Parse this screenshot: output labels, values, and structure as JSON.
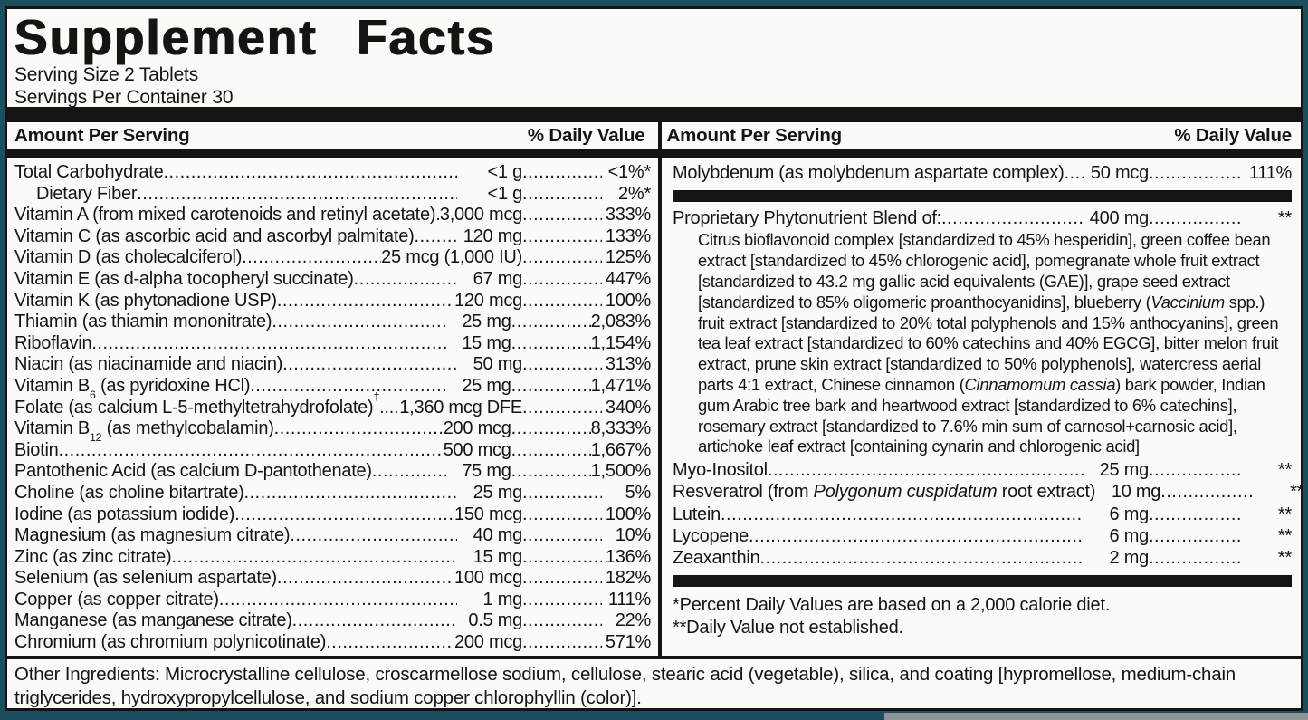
{
  "title": "Supplement Facts",
  "serving": {
    "size": "Serving Size 2 Tablets",
    "per_container": "Servings Per Container 30"
  },
  "column_header": {
    "amount": "Amount Per Serving",
    "dv": "% Daily Value"
  },
  "left_rows": [
    {
      "name_parts": [
        [
          "Total Carbohydrate ",
          null
        ]
      ],
      "amount": "<1 g",
      "dv": "<1%*"
    },
    {
      "name_parts": [
        [
          "Dietary Fiber",
          null
        ]
      ],
      "amount": "<1 g",
      "dv": "2%*",
      "indent": true
    },
    {
      "name_parts": [
        [
          "Vitamin A (from mixed carotenoids and retinyl acetate)",
          null
        ]
      ],
      "amount": "3,000 mcg",
      "dv": "333%"
    },
    {
      "name_parts": [
        [
          "Vitamin C (as ascorbic acid and ascorbyl palmitate) ",
          null
        ]
      ],
      "amount": "120 mg",
      "dv": "133%"
    },
    {
      "name_parts": [
        [
          "Vitamin D (as cholecalciferol)",
          null
        ]
      ],
      "amount": "25 mcg (1,000 IU)",
      "dv": "125%"
    },
    {
      "name_parts": [
        [
          "Vitamin E (as d-alpha tocopheryl succinate)",
          null
        ]
      ],
      "amount": "67 mg",
      "dv": "447%"
    },
    {
      "name_parts": [
        [
          "Vitamin K (as phytonadione USP) ",
          null
        ]
      ],
      "amount": "120 mcg",
      "dv": "100%"
    },
    {
      "name_parts": [
        [
          "Thiamin (as thiamin mononitrate) ",
          null
        ]
      ],
      "amount": "25 mg",
      "dv": "2,083%"
    },
    {
      "name_parts": [
        [
          "Riboflavin",
          null
        ]
      ],
      "amount": "15 mg",
      "dv": "1,154%"
    },
    {
      "name_parts": [
        [
          "Niacin (as niacinamide and niacin)",
          null
        ]
      ],
      "amount": "50 mg",
      "dv": "313%"
    },
    {
      "name_parts": [
        [
          "Vitamin B",
          null
        ],
        [
          "6",
          "sub"
        ],
        [
          " (as pyridoxine HCl)",
          null
        ]
      ],
      "amount": "25 mg",
      "dv": "1,471%"
    },
    {
      "name_parts": [
        [
          "Folate (as calcium L-5-methyltetrahydrofolate)",
          null
        ],
        [
          "†",
          "sup"
        ],
        [
          "....",
          null
        ]
      ],
      "amount": "1,360 mcg DFE",
      "dv": "340%"
    },
    {
      "name_parts": [
        [
          "Vitamin B",
          null
        ],
        [
          "12",
          "sub"
        ],
        [
          " (as methylcobalamin)",
          null
        ]
      ],
      "amount": "200 mcg",
      "dv": "8,333%"
    },
    {
      "name_parts": [
        [
          "Biotin",
          null
        ]
      ],
      "amount": "500 mcg",
      "dv": "1,667%"
    },
    {
      "name_parts": [
        [
          "Pantothenic Acid (as calcium D-pantothenate)",
          null
        ]
      ],
      "amount": "75 mg",
      "dv": "1,500%"
    },
    {
      "name_parts": [
        [
          "Choline (as choline bitartrate) ",
          null
        ]
      ],
      "amount": "25 mg",
      "dv": "5%"
    },
    {
      "name_parts": [
        [
          "Iodine (as potassium iodide) ",
          null
        ]
      ],
      "amount": "150 mcg",
      "dv": "100%"
    },
    {
      "name_parts": [
        [
          "Magnesium (as magnesium citrate) ",
          null
        ]
      ],
      "amount": "40 mg",
      "dv": "10%"
    },
    {
      "name_parts": [
        [
          "Zinc (as zinc citrate) ",
          null
        ]
      ],
      "amount": "15 mg",
      "dv": "136%"
    },
    {
      "name_parts": [
        [
          "Selenium (as selenium aspartate)",
          null
        ]
      ],
      "amount": "100 mcg",
      "dv": "182%"
    },
    {
      "name_parts": [
        [
          "Copper (as copper citrate)",
          null
        ]
      ],
      "amount": "1 mg",
      "dv": "111%"
    },
    {
      "name_parts": [
        [
          "Manganese (as manganese citrate) ",
          null
        ]
      ],
      "amount": "0.5 mg",
      "dv": "22%"
    },
    {
      "name_parts": [
        [
          "Chromium (as chromium polynicotinate)",
          null
        ]
      ],
      "amount": "200 mcg",
      "dv": "571%"
    }
  ],
  "right": {
    "molybdenum_row": {
      "name_parts": [
        [
          "Molybdenum (as molybdenum aspartate complex) ",
          null
        ]
      ],
      "amount": "50 mcg",
      "dv": "111%"
    },
    "blend_row": {
      "name_parts": [
        [
          "Proprietary Phytonutrient Blend of: ",
          null
        ]
      ],
      "amount": "400 mg",
      "dv": "**"
    },
    "blend": {
      "p0": "Citrus bioflavonoid complex [standardized to 45% hesperidin], green coffee bean extract [standardized to 45% chlorogenic acid], pomegranate whole fruit extract [standardized to 43.2 mg gallic acid equivalents (GAE)], grape seed extract [standardized to 85% oligomeric proanthocyanidins], blueberry (",
      "i1": "Vaccinium",
      "p2": " spp.) fruit extract [standardized to 20% total polyphenols and 15% anthocyanins], green tea leaf extract [standardized to 60% catechins and 40% EGCG], bitter melon fruit extract, prune skin extract [standardized to 50% polyphenols], watercress aerial parts 4:1 extract, Chinese cinnamon (",
      "i3": "Cinnamomum cassia",
      "p4": ") bark powder, Indian gum Arabic tree bark and heartwood extract [standardized to 6% catechins], rosemary extract [standardized to 7.6% min sum of carnosol+carnosic acid], artichoke leaf extract [containing cynarin and chlorogenic acid]"
    },
    "extra_rows": [
      {
        "name_parts": [
          [
            "Myo-Inositol",
            null
          ]
        ],
        "amount": "25 mg",
        "dv": "**"
      },
      {
        "name_parts": [
          [
            "Resveratrol (from ",
            null
          ],
          [
            "Polygonum cuspidatum",
            "i"
          ],
          [
            " root extract)",
            null
          ]
        ],
        "amount": "10 mg",
        "dv": "**"
      },
      {
        "name_parts": [
          [
            "Lutein ",
            null
          ]
        ],
        "amount": "6 mg",
        "dv": "**"
      },
      {
        "name_parts": [
          [
            "Lycopene",
            null
          ]
        ],
        "amount": "6 mg",
        "dv": "**"
      },
      {
        "name_parts": [
          [
            "Zeaxanthin",
            null
          ]
        ],
        "amount": "2 mg",
        "dv": "**"
      }
    ],
    "footnotes": {
      "fn1": "*Percent Daily Values are based on a 2,000 calorie diet.",
      "fn2": "**Daily Value not established."
    }
  },
  "other_ingredients": "Other Ingredients: Microcrystalline cellulose, croscarmellose sodium, cellulose, stearic acid (vegetable), silica, and coating [hypromellose, medium-chain triglycerides, hydroxypropylcellulose, and sodium copper chlorophyllin (color)].",
  "colors": {
    "frame": "#1b4e5e",
    "bar": "#141414",
    "paper": "#fbfaf7"
  }
}
